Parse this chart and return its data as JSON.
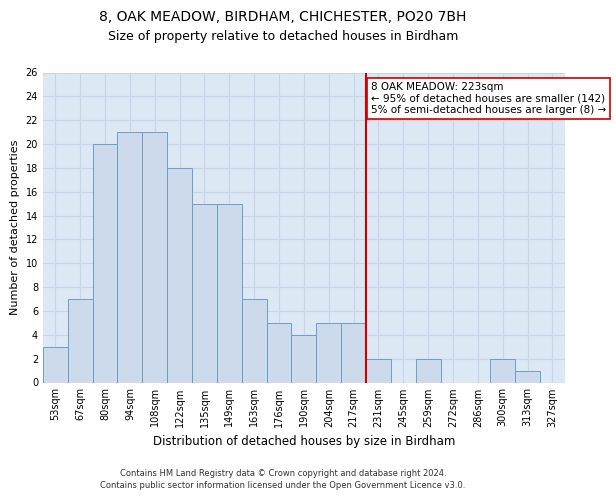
{
  "title1": "8, OAK MEADOW, BIRDHAM, CHICHESTER, PO20 7BH",
  "title2": "Size of property relative to detached houses in Birdham",
  "xlabel": "Distribution of detached houses by size in Birdham",
  "ylabel": "Number of detached properties",
  "categories": [
    "53sqm",
    "67sqm",
    "80sqm",
    "94sqm",
    "108sqm",
    "122sqm",
    "135sqm",
    "149sqm",
    "163sqm",
    "176sqm",
    "190sqm",
    "204sqm",
    "217sqm",
    "231sqm",
    "245sqm",
    "259sqm",
    "272sqm",
    "286sqm",
    "300sqm",
    "313sqm",
    "327sqm"
  ],
  "values": [
    3,
    7,
    20,
    21,
    21,
    18,
    15,
    15,
    7,
    5,
    4,
    5,
    5,
    2,
    0,
    2,
    0,
    0,
    2,
    1,
    0
  ],
  "bar_color": "#ccdaec",
  "bar_edge_color": "#6b9fc8",
  "vline_pos": 12.5,
  "vline_color": "#cc0000",
  "annotation_text": "8 OAK MEADOW: 223sqm\n← 95% of detached houses are smaller (142)\n5% of semi-detached houses are larger (8) →",
  "annotation_box_color": "#ffffff",
  "annotation_box_edge": "#cc0000",
  "ylim": [
    0,
    26
  ],
  "yticks": [
    0,
    2,
    4,
    6,
    8,
    10,
    12,
    14,
    16,
    18,
    20,
    22,
    24,
    26
  ],
  "grid_color": "#c8d4e8",
  "background_color": "#dde8f5",
  "footer": "Contains HM Land Registry data © Crown copyright and database right 2024.\nContains public sector information licensed under the Open Government Licence v3.0.",
  "title1_fontsize": 10,
  "title2_fontsize": 9,
  "xlabel_fontsize": 8.5,
  "ylabel_fontsize": 8,
  "tick_fontsize": 7,
  "annot_fontsize": 7.5,
  "footer_fontsize": 6
}
